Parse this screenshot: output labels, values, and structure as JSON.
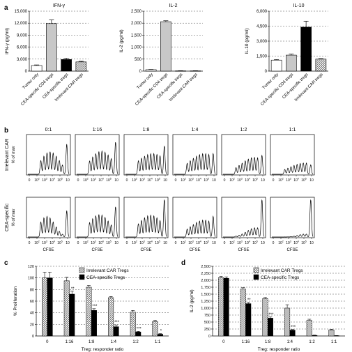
{
  "panel_labels": {
    "a": "a",
    "b": "b",
    "c": "c",
    "d": "d"
  },
  "panel_a": {
    "categories": [
      "Tumor only",
      "CEA-specific CD4 tregs",
      "CEA-specific tregs",
      "Irrelevant CAR tregs"
    ],
    "colors": {
      "open": "#ffffff",
      "grey": "#c8c8c8",
      "black": "#000000",
      "hatch": "#e0e0e0"
    },
    "fills": [
      "open",
      "grey",
      "black",
      "hatch"
    ]
  },
  "panel_b": {
    "ratio_labels": [
      "0:1",
      "1:16",
      "1:8",
      "1:4",
      "1:2",
      "1:1"
    ],
    "row_labels": [
      {
        "name": "Irrelevant CAR",
        "sub": "% of max"
      },
      {
        "name": "CEA-specific",
        "sub": "% of max"
      }
    ],
    "x_ticks": [
      "0",
      "10",
      "10",
      "10",
      "10",
      "10"
    ],
    "x_exps": [
      "",
      "2",
      "3",
      "4",
      "5",
      ""
    ],
    "x_label": "CFSE"
  },
  "chart_data": [
    {
      "type": "bar",
      "title": "IFN-γ",
      "ylabel": "IFN-γ (pg/ml)",
      "ylim": [
        0,
        15000
      ],
      "yticks": [
        "0",
        "3,000",
        "6,000",
        "9,000",
        "12,000",
        "15,000"
      ],
      "categories": [
        "Tumor only",
        "CEA-specific CD4 tregs",
        "CEA-specific tregs",
        "Irrelevant CAR tregs"
      ],
      "values": [
        1400,
        11900,
        2900,
        2300
      ],
      "errors": [
        150,
        900,
        300,
        150
      ]
    },
    {
      "type": "bar",
      "title": "IL-2",
      "ylabel": "IL-2 (pg/ml)",
      "ylim": [
        0,
        2500
      ],
      "yticks": [
        "0",
        "500",
        "1,000",
        "1,500",
        "2,000",
        "2,500"
      ],
      "categories": [
        "Tumor only",
        "CEA-specific CD4 tregs",
        "CEA-specific tregs",
        "Irrelevant CAR tregs"
      ],
      "values": [
        60,
        2060,
        10,
        10
      ],
      "errors": [
        10,
        40,
        5,
        5
      ]
    },
    {
      "type": "bar",
      "title": "IL-10",
      "ylabel": "IL-10 (pg/ml)",
      "ylim": [
        0,
        6000
      ],
      "yticks": [
        "0",
        "1,500",
        "3,000",
        "4,500",
        "6,000"
      ],
      "categories": [
        "Tumor only",
        "CEA-specific CD4 tregs",
        "CEA-specific tregs",
        "Irrelevant CAR tregs"
      ],
      "values": [
        1100,
        1600,
        4400,
        1200
      ],
      "errors": [
        50,
        100,
        600,
        50
      ]
    },
    {
      "type": "bar",
      "ylabel": "% Proliferation",
      "xlabel": "Treg: responder ratio",
      "ylim": [
        0,
        120
      ],
      "yticks": [
        "0",
        "20",
        "40",
        "60",
        "80",
        "100",
        "120"
      ],
      "categories": [
        "0",
        "1:16",
        "1:8",
        "1:4",
        "1:2",
        "1:1"
      ],
      "series": [
        {
          "name": "Irrelevant CAR Tregs",
          "values": [
            100,
            95,
            84,
            66,
            41,
            25
          ],
          "errors": [
            10,
            6,
            3,
            2,
            3,
            2
          ]
        },
        {
          "name": "CEA-specific Tregs",
          "values": [
            100,
            72,
            44,
            16,
            7,
            3
          ],
          "errors": [
            10,
            5,
            3,
            3,
            1,
            1
          ]
        }
      ],
      "significance": [
        "",
        "**",
        "***",
        "***",
        "***",
        "*"
      ],
      "legend": "top-right"
    },
    {
      "type": "bar",
      "ylabel": "IL-2 (pg/ml)",
      "xlabel": "Treg: responder ratio",
      "ylim": [
        0,
        2500
      ],
      "yticks": [
        "0",
        "250",
        "500",
        "750",
        "1,000",
        "1,250",
        "1,500",
        "1,750",
        "2,000",
        "2,250",
        "2,500"
      ],
      "categories": [
        "0",
        "1:16",
        "1:8",
        "1:4",
        "1:2",
        "1:1"
      ],
      "series": [
        {
          "name": "Irrelevant CAR Tregs",
          "values": [
            2090,
            1680,
            1340,
            1000,
            560,
            220
          ],
          "errors": [
            50,
            50,
            40,
            120,
            40,
            20
          ]
        },
        {
          "name": "CEA-specific Tregs",
          "values": [
            2070,
            1160,
            640,
            210,
            20,
            10
          ],
          "errors": [
            50,
            40,
            40,
            20,
            10,
            5
          ]
        }
      ],
      "significance": [
        "",
        "**",
        "***",
        "***",
        "",
        ""
      ],
      "legend": "top-right"
    }
  ]
}
